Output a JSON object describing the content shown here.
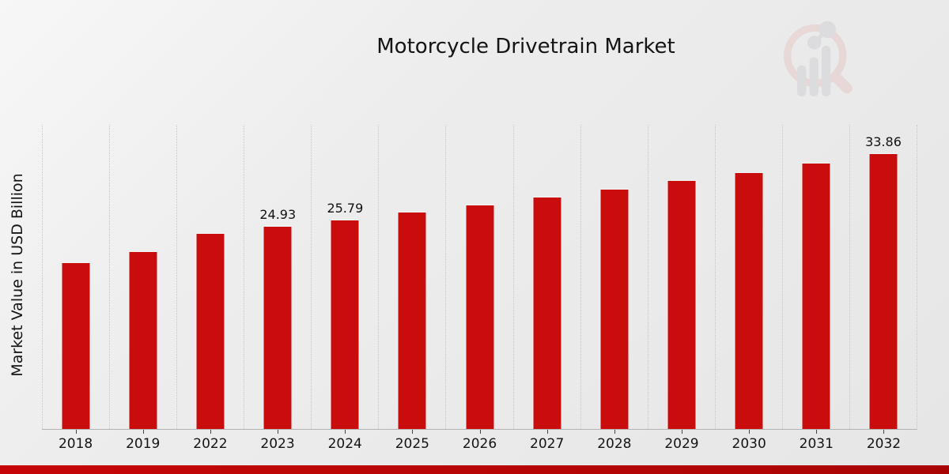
{
  "page": {
    "title": "Motorcycle Drivetrain Market"
  },
  "chart_data": {
    "type": "bar",
    "title": "Motorcycle Drivetrain Market",
    "xlabel": "",
    "ylabel": "Market Value in USD Billion",
    "ylim": [
      0,
      37.4
    ],
    "grid": "vertical-dotted",
    "legend": "none",
    "bar_color": "#c90c0c",
    "bar_edge_color": "#f4f4f4",
    "footer_color": "#b20505",
    "categories": [
      "2018",
      "2019",
      "2022",
      "2023",
      "2024",
      "2025",
      "2026",
      "2027",
      "2028",
      "2029",
      "2030",
      "2031",
      "2032"
    ],
    "values": [
      20.48,
      21.88,
      24.13,
      24.93,
      25.79,
      26.68,
      27.6,
      28.56,
      29.55,
      30.57,
      31.62,
      32.72,
      33.86
    ],
    "bars": [
      {
        "year": "2018",
        "value": 20.48,
        "label": ""
      },
      {
        "year": "2019",
        "value": 21.88,
        "label": ""
      },
      {
        "year": "2022",
        "value": 24.13,
        "label": ""
      },
      {
        "year": "2023",
        "value": 24.93,
        "label": "24.93"
      },
      {
        "year": "2024",
        "value": 25.79,
        "label": "25.79"
      },
      {
        "year": "2025",
        "value": 26.68,
        "label": ""
      },
      {
        "year": "2026",
        "value": 27.6,
        "label": ""
      },
      {
        "year": "2027",
        "value": 28.56,
        "label": ""
      },
      {
        "year": "2028",
        "value": 29.55,
        "label": ""
      },
      {
        "year": "2029",
        "value": 30.57,
        "label": ""
      },
      {
        "year": "2030",
        "value": 31.62,
        "label": ""
      },
      {
        "year": "2031",
        "value": 32.72,
        "label": ""
      },
      {
        "year": "2032",
        "value": 33.86,
        "label": "33.86"
      }
    ]
  },
  "logo": {
    "name": "market-research-magnifier-logo"
  }
}
